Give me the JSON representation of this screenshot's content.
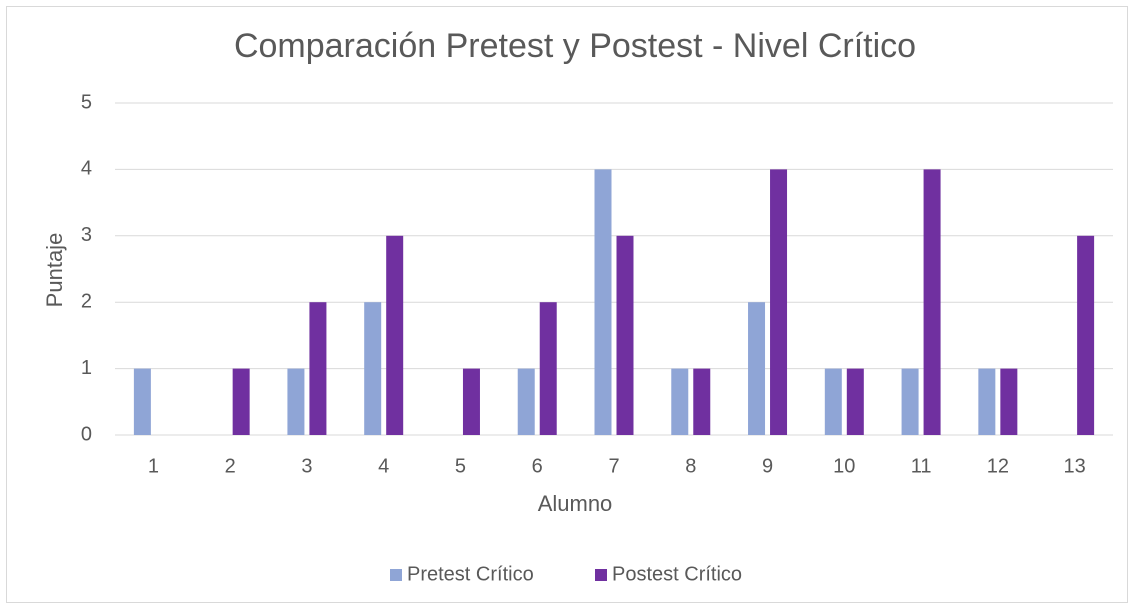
{
  "chart_data": {
    "type": "bar",
    "title": "Comparación Pretest y Postest - Nivel Crítico",
    "x_label": "Alumno",
    "y_label": "Puntaje",
    "categories": [
      "1",
      "2",
      "3",
      "4",
      "5",
      "6",
      "7",
      "8",
      "9",
      "10",
      "11",
      "12",
      "13"
    ],
    "series": [
      {
        "name": "Pretest Crítico",
        "color": "#8fa5d6",
        "values": [
          1,
          0,
          1,
          2,
          0,
          1,
          4,
          1,
          2,
          1,
          1,
          1,
          0
        ]
      },
      {
        "name": "Postest Crítico",
        "color": "#7030a0",
        "values": [
          0,
          1,
          2,
          3,
          1,
          2,
          3,
          1,
          4,
          1,
          4,
          1,
          3
        ]
      }
    ],
    "ylim": [
      0,
      5
    ],
    "yticks": [
      0,
      1,
      2,
      3,
      4,
      5
    ],
    "grid": true,
    "legend": "bottom"
  }
}
